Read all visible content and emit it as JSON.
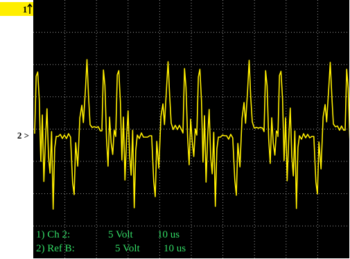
{
  "screen": {
    "marker_1": "1",
    "marker_2": "2 >",
    "status": [
      {
        "channel": "1) Ch 2:",
        "scale": "5 Volt",
        "time": "10 us"
      },
      {
        "channel": "2) Ref B:",
        "scale": "5 Volt",
        "time": "10 us"
      }
    ]
  }
}
